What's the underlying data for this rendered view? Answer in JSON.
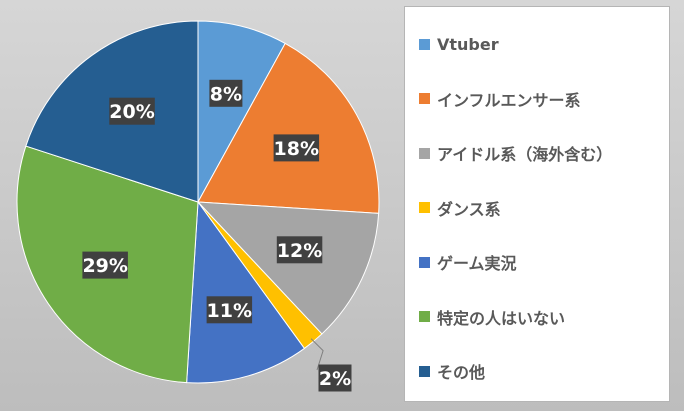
{
  "chart_data": {
    "type": "pie",
    "title": "",
    "legend_position": "right",
    "slices": [
      {
        "name": "Vtuber",
        "value": 8,
        "label": "8%",
        "color": "#5b9bd5"
      },
      {
        "name": "インフルエンサー系",
        "value": 18,
        "label": "18%",
        "color": "#ed7d31"
      },
      {
        "name": "アイドル系（海外含む）",
        "value": 12,
        "label": "12%",
        "color": "#a5a5a5"
      },
      {
        "name": "ダンス系",
        "value": 2,
        "label": "2%",
        "color": "#ffc000"
      },
      {
        "name": "ゲーム実況",
        "value": 11,
        "label": "11%",
        "color": "#4472c4"
      },
      {
        "name": "特定の人はいない",
        "value": 29,
        "label": "29%",
        "color": "#70ad47"
      },
      {
        "name": "その他",
        "value": 20,
        "label": "20%",
        "color": "#255e91"
      }
    ]
  }
}
